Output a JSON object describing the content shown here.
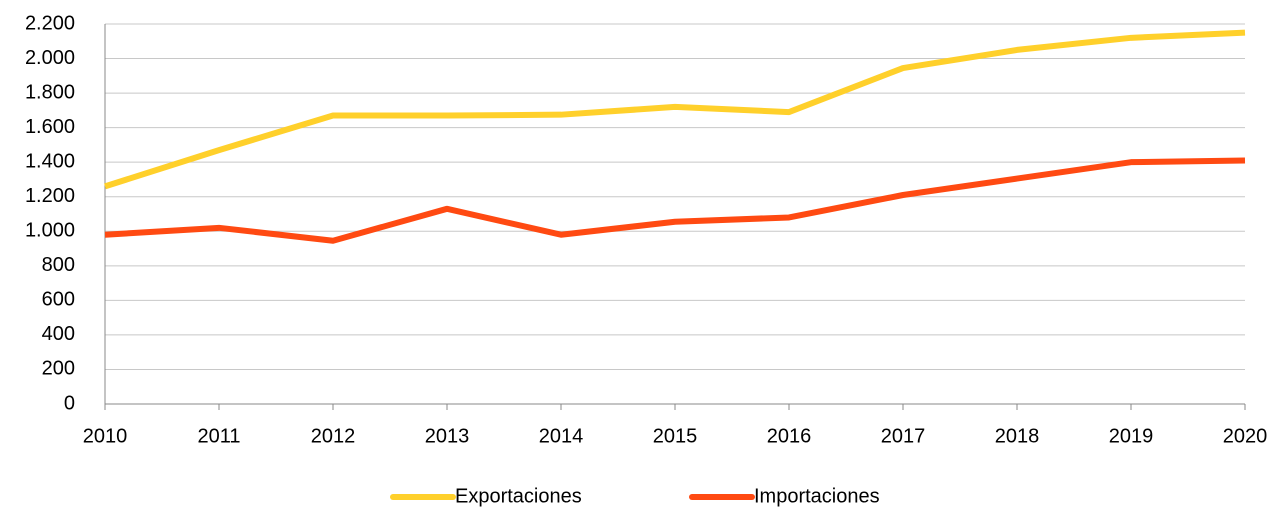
{
  "chart_data": {
    "type": "line",
    "categories": [
      "2010",
      "2011",
      "2012",
      "2013",
      "2014",
      "2015",
      "2016",
      "2017",
      "2018",
      "2019",
      "2020"
    ],
    "series": [
      {
        "name": "Exportaciones",
        "color": "#ffd02b",
        "values": [
          1260,
          1470,
          1670,
          1670,
          1675,
          1720,
          1690,
          1945,
          2050,
          2120,
          2150
        ]
      },
      {
        "name": "Importaciones",
        "color": "#ff4a12",
        "values": [
          980,
          1020,
          945,
          1130,
          980,
          1055,
          1080,
          1210,
          1305,
          1400,
          1410
        ]
      }
    ],
    "ylim": [
      0,
      2200
    ],
    "yticks": [
      0,
      200,
      400,
      600,
      800,
      {
        "value": 1000,
        "label": "1.000"
      },
      {
        "value": 1200,
        "label": "1.200"
      },
      {
        "value": 1400,
        "label": "1.400"
      },
      {
        "value": 1600,
        "label": "1.600"
      },
      {
        "value": 1800,
        "label": "1.800"
      },
      {
        "value": 2000,
        "label": "2.000"
      },
      {
        "value": 2200,
        "label": "2.200"
      }
    ],
    "grid": true,
    "legend": "bottom"
  }
}
